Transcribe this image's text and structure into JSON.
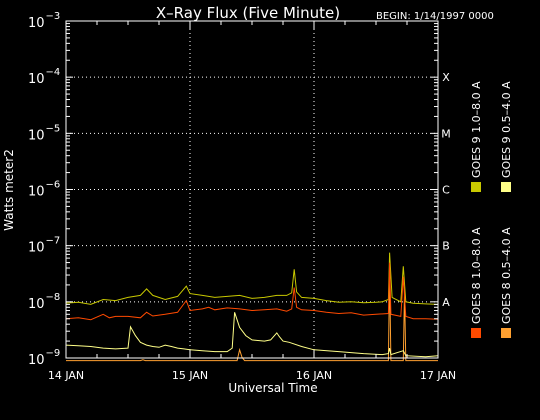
{
  "chart_data": {
    "type": "line",
    "title": "X–Ray Flux (Five Minute)",
    "begin_label": "BEGIN: 1/14/1997 0000",
    "xlabel": "Universal Time",
    "ylabel": "Watts meter2",
    "x_ticks": [
      "14 JAN",
      "15 JAN",
      "16 JAN",
      "17 JAN"
    ],
    "x_range_days": [
      0,
      3
    ],
    "y_scale": "log",
    "ylim": [
      1e-09,
      0.001
    ],
    "y_ticks": [
      {
        "base": "10",
        "exp": "−3",
        "value": 0.001
      },
      {
        "base": "10",
        "exp": "−4",
        "value": 0.0001
      },
      {
        "base": "10",
        "exp": "−5",
        "value": 1e-05
      },
      {
        "base": "10",
        "exp": "−6",
        "value": 1e-06
      },
      {
        "base": "10",
        "exp": "−7",
        "value": 1e-07
      },
      {
        "base": "10",
        "exp": "−8",
        "value": 1e-08
      },
      {
        "base": "10",
        "exp": "−9",
        "value": 1e-09
      }
    ],
    "flare_classes": [
      {
        "label": "X",
        "value": 0.0001
      },
      {
        "label": "M",
        "value": 1e-05
      },
      {
        "label": "C",
        "value": 1e-06
      },
      {
        "label": "B",
        "value": 1e-07
      },
      {
        "label": "A",
        "value": 1e-08
      }
    ],
    "grid": true,
    "legend_position": "right",
    "legend_column_1": [
      {
        "label": "GOES 8 1.0–8.0 A",
        "color": "#ff4a00"
      },
      {
        "label": "GOES 9 1.0–8.0 A",
        "color": "#c8c800"
      }
    ],
    "legend_column_2": [
      {
        "label": "GOES 8 0.5–4.0 A",
        "color": "#ffa030"
      },
      {
        "label": "GOES 9 0.5–4.0 A",
        "color": "#ffff88"
      }
    ],
    "series": [
      {
        "name": "GOES 9 1.0–8.0 A",
        "color": "#c8c800",
        "points": [
          [
            0,
            9.5e-09
          ],
          [
            0.1,
            9.8e-09
          ],
          [
            0.2,
            9e-09
          ],
          [
            0.3,
            1.1e-08
          ],
          [
            0.4,
            1.05e-08
          ],
          [
            0.5,
            1.2e-08
          ],
          [
            0.6,
            1.3e-08
          ],
          [
            0.65,
            1.7e-08
          ],
          [
            0.7,
            1.3e-08
          ],
          [
            0.8,
            1.1e-08
          ],
          [
            0.9,
            1.25e-08
          ],
          [
            0.97,
            1.9e-08
          ],
          [
            1.0,
            1.4e-08
          ],
          [
            1.1,
            1.3e-08
          ],
          [
            1.2,
            1.2e-08
          ],
          [
            1.3,
            1.25e-08
          ],
          [
            1.4,
            1.3e-08
          ],
          [
            1.5,
            1.15e-08
          ],
          [
            1.6,
            1.2e-08
          ],
          [
            1.7,
            1.3e-08
          ],
          [
            1.78,
            1.3e-08
          ],
          [
            1.82,
            1.45e-08
          ],
          [
            1.84,
            3.8e-08
          ],
          [
            1.86,
            1.5e-08
          ],
          [
            1.9,
            1.2e-08
          ],
          [
            2.0,
            1.15e-08
          ],
          [
            2.1,
            1.05e-08
          ],
          [
            2.2,
            9.8e-09
          ],
          [
            2.3,
            1e-08
          ],
          [
            2.4,
            9.6e-09
          ],
          [
            2.5,
            9.8e-09
          ],
          [
            2.55,
            1e-08
          ],
          [
            2.6,
            1.1e-08
          ],
          [
            2.61,
            7.5e-08
          ],
          [
            2.63,
            1.2e-08
          ],
          [
            2.7,
            1e-08
          ],
          [
            2.72,
            4.3e-08
          ],
          [
            2.74,
            1e-08
          ],
          [
            2.8,
            9.4e-09
          ],
          [
            2.9,
            9.2e-09
          ],
          [
            3.0,
            9e-09
          ]
        ]
      },
      {
        "name": "GOES 8 0.5–4.0 A",
        "color": "#ffa030",
        "points": [
          [
            0,
            9e-10
          ],
          [
            0.6,
            9e-10
          ],
          [
            0.62,
            9.3e-10
          ],
          [
            0.64,
            9e-10
          ],
          [
            1.0,
            9e-10
          ],
          [
            1.38,
            9e-10
          ],
          [
            1.4,
            1.4e-09
          ],
          [
            1.42,
            1.02e-09
          ],
          [
            1.44,
            9e-10
          ],
          [
            2.6,
            9e-10
          ],
          [
            2.61,
            3.5e-08
          ],
          [
            2.62,
            9e-10
          ],
          [
            2.72,
            9e-10
          ],
          [
            2.73,
            1.6e-08
          ],
          [
            2.74,
            9e-10
          ],
          [
            3.0,
            9e-10
          ]
        ]
      },
      {
        "name": "GOES 8 1.0–8.0 A",
        "color": "#ff4a00",
        "points": [
          [
            0,
            5e-09
          ],
          [
            0.1,
            5.2e-09
          ],
          [
            0.2,
            4.8e-09
          ],
          [
            0.3,
            6e-09
          ],
          [
            0.35,
            5.2e-09
          ],
          [
            0.4,
            5.5e-09
          ],
          [
            0.5,
            5.5e-09
          ],
          [
            0.6,
            5.2e-09
          ],
          [
            0.65,
            6.5e-09
          ],
          [
            0.7,
            5.6e-09
          ],
          [
            0.8,
            6e-09
          ],
          [
            0.9,
            6.5e-09
          ],
          [
            0.97,
            1.05e-08
          ],
          [
            1.0,
            7e-09
          ],
          [
            1.1,
            7.5e-09
          ],
          [
            1.15,
            8e-09
          ],
          [
            1.2,
            7.2e-09
          ],
          [
            1.3,
            7.8e-09
          ],
          [
            1.4,
            7.5e-09
          ],
          [
            1.5,
            7e-09
          ],
          [
            1.6,
            7.2e-09
          ],
          [
            1.7,
            7.5e-09
          ],
          [
            1.78,
            6.8e-09
          ],
          [
            1.82,
            7.5e-09
          ],
          [
            1.84,
            1.8e-08
          ],
          [
            1.86,
            8e-09
          ],
          [
            1.9,
            7.2e-09
          ],
          [
            2.0,
            7e-09
          ],
          [
            2.1,
            6.5e-09
          ],
          [
            2.2,
            6.2e-09
          ],
          [
            2.3,
            6.4e-09
          ],
          [
            2.4,
            5.8e-09
          ],
          [
            2.5,
            6e-09
          ],
          [
            2.6,
            6.2e-09
          ],
          [
            2.61,
            5e-08
          ],
          [
            2.62,
            6e-09
          ],
          [
            2.7,
            5.5e-09
          ],
          [
            2.72,
            2.8e-08
          ],
          [
            2.74,
            5.5e-09
          ],
          [
            2.8,
            5e-09
          ],
          [
            2.9,
            5e-09
          ],
          [
            3.0,
            4.9e-09
          ]
        ]
      },
      {
        "name": "GOES 9 0.5–4.0 A",
        "color": "#ffff88",
        "points": [
          [
            0,
            1.7e-09
          ],
          [
            0.1,
            1.65e-09
          ],
          [
            0.2,
            1.6e-09
          ],
          [
            0.3,
            1.5e-09
          ],
          [
            0.4,
            1.45e-09
          ],
          [
            0.5,
            1.5e-09
          ],
          [
            0.52,
            3.6e-09
          ],
          [
            0.56,
            2.5e-09
          ],
          [
            0.6,
            1.9e-09
          ],
          [
            0.65,
            1.7e-09
          ],
          [
            0.7,
            1.6e-09
          ],
          [
            0.75,
            1.55e-09
          ],
          [
            0.8,
            1.7e-09
          ],
          [
            0.85,
            1.6e-09
          ],
          [
            0.9,
            1.5e-09
          ],
          [
            0.95,
            1.45e-09
          ],
          [
            1.0,
            1.4e-09
          ],
          [
            1.1,
            1.35e-09
          ],
          [
            1.2,
            1.3e-09
          ],
          [
            1.3,
            1.3e-09
          ],
          [
            1.34,
            1.5e-09
          ],
          [
            1.36,
            6.5e-09
          ],
          [
            1.4,
            3.5e-09
          ],
          [
            1.45,
            2.5e-09
          ],
          [
            1.5,
            2.1e-09
          ],
          [
            1.6,
            2e-09
          ],
          [
            1.65,
            2.1e-09
          ],
          [
            1.7,
            2.8e-09
          ],
          [
            1.72,
            2.4e-09
          ],
          [
            1.75,
            2e-09
          ],
          [
            1.8,
            1.9e-09
          ],
          [
            1.9,
            1.6e-09
          ],
          [
            2.0,
            1.4e-09
          ],
          [
            2.2,
            1.3e-09
          ],
          [
            2.4,
            1.2e-09
          ],
          [
            2.55,
            1.15e-09
          ],
          [
            2.6,
            1.2e-09
          ],
          [
            2.61,
            1.5e-09
          ],
          [
            2.62,
            1.15e-09
          ],
          [
            2.72,
            1.35e-09
          ],
          [
            2.74,
            1.1e-09
          ],
          [
            2.9,
            1.05e-09
          ],
          [
            3.0,
            1.1e-09
          ]
        ]
      }
    ]
  }
}
